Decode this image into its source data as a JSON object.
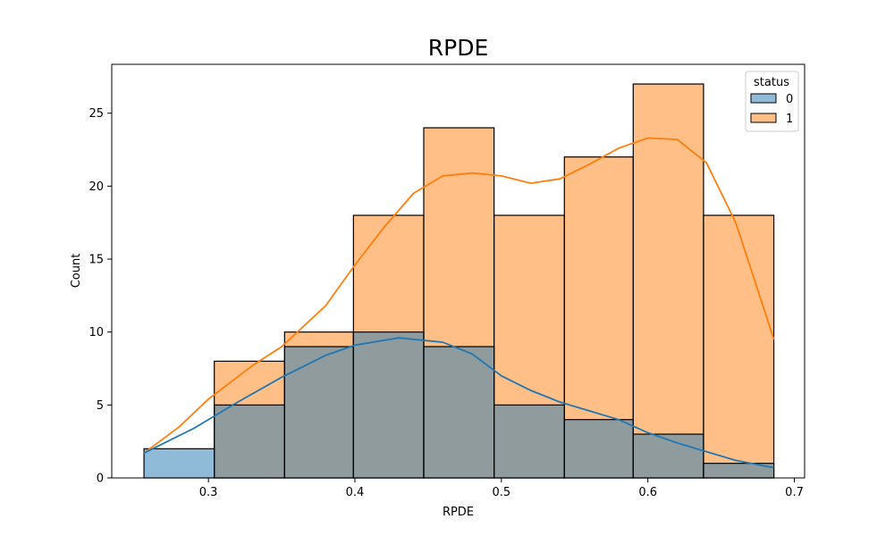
{
  "chart_data": {
    "type": "bar",
    "title": "RPDE",
    "xlabel": "RPDE",
    "ylabel": "Count",
    "xlim": [
      0.234,
      0.707
    ],
    "ylim": [
      0,
      28.35
    ],
    "x_ticks": [
      0.3,
      0.4,
      0.5,
      0.6,
      0.7
    ],
    "x_tick_labels": [
      "0.3",
      "0.4",
      "0.5",
      "0.6",
      "0.7"
    ],
    "y_ticks": [
      0,
      5,
      10,
      15,
      20,
      25
    ],
    "y_tick_labels": [
      "0",
      "5",
      "10",
      "15",
      "20",
      "25"
    ],
    "bin_edges": [
      0.256,
      0.304,
      0.352,
      0.399,
      0.447,
      0.495,
      0.543,
      0.59,
      0.638,
      0.686
    ],
    "grid": false,
    "legend": {
      "title": "status",
      "placement": "top-right"
    },
    "series": [
      {
        "name": "0",
        "color": "#1f77b4",
        "values": [
          2,
          5,
          9,
          10,
          9,
          5,
          4,
          3,
          1
        ],
        "kde": [
          [
            0.256,
            1.7
          ],
          [
            0.29,
            3.4
          ],
          [
            0.32,
            5.2
          ],
          [
            0.35,
            6.9
          ],
          [
            0.38,
            8.4
          ],
          [
            0.4,
            9.1
          ],
          [
            0.43,
            9.6
          ],
          [
            0.46,
            9.3
          ],
          [
            0.48,
            8.5
          ],
          [
            0.5,
            7.0
          ],
          [
            0.52,
            6.0
          ],
          [
            0.54,
            5.2
          ],
          [
            0.56,
            4.6
          ],
          [
            0.58,
            4.0
          ],
          [
            0.6,
            3.1
          ],
          [
            0.62,
            2.4
          ],
          [
            0.64,
            1.8
          ],
          [
            0.66,
            1.2
          ],
          [
            0.686,
            0.7
          ]
        ]
      },
      {
        "name": "1",
        "color": "#ff7f0e",
        "values": [
          0,
          8,
          10,
          18,
          24,
          18,
          22,
          27,
          18
        ],
        "kde": [
          [
            0.256,
            1.7
          ],
          [
            0.28,
            3.5
          ],
          [
            0.3,
            5.4
          ],
          [
            0.33,
            7.7
          ],
          [
            0.35,
            9.0
          ],
          [
            0.38,
            11.8
          ],
          [
            0.4,
            14.6
          ],
          [
            0.42,
            17.2
          ],
          [
            0.44,
            19.5
          ],
          [
            0.46,
            20.7
          ],
          [
            0.48,
            20.9
          ],
          [
            0.5,
            20.7
          ],
          [
            0.52,
            20.2
          ],
          [
            0.54,
            20.5
          ],
          [
            0.56,
            21.5
          ],
          [
            0.58,
            22.6
          ],
          [
            0.6,
            23.3
          ],
          [
            0.62,
            23.2
          ],
          [
            0.64,
            21.6
          ],
          [
            0.66,
            17.5
          ],
          [
            0.686,
            9.5
          ]
        ]
      }
    ]
  }
}
